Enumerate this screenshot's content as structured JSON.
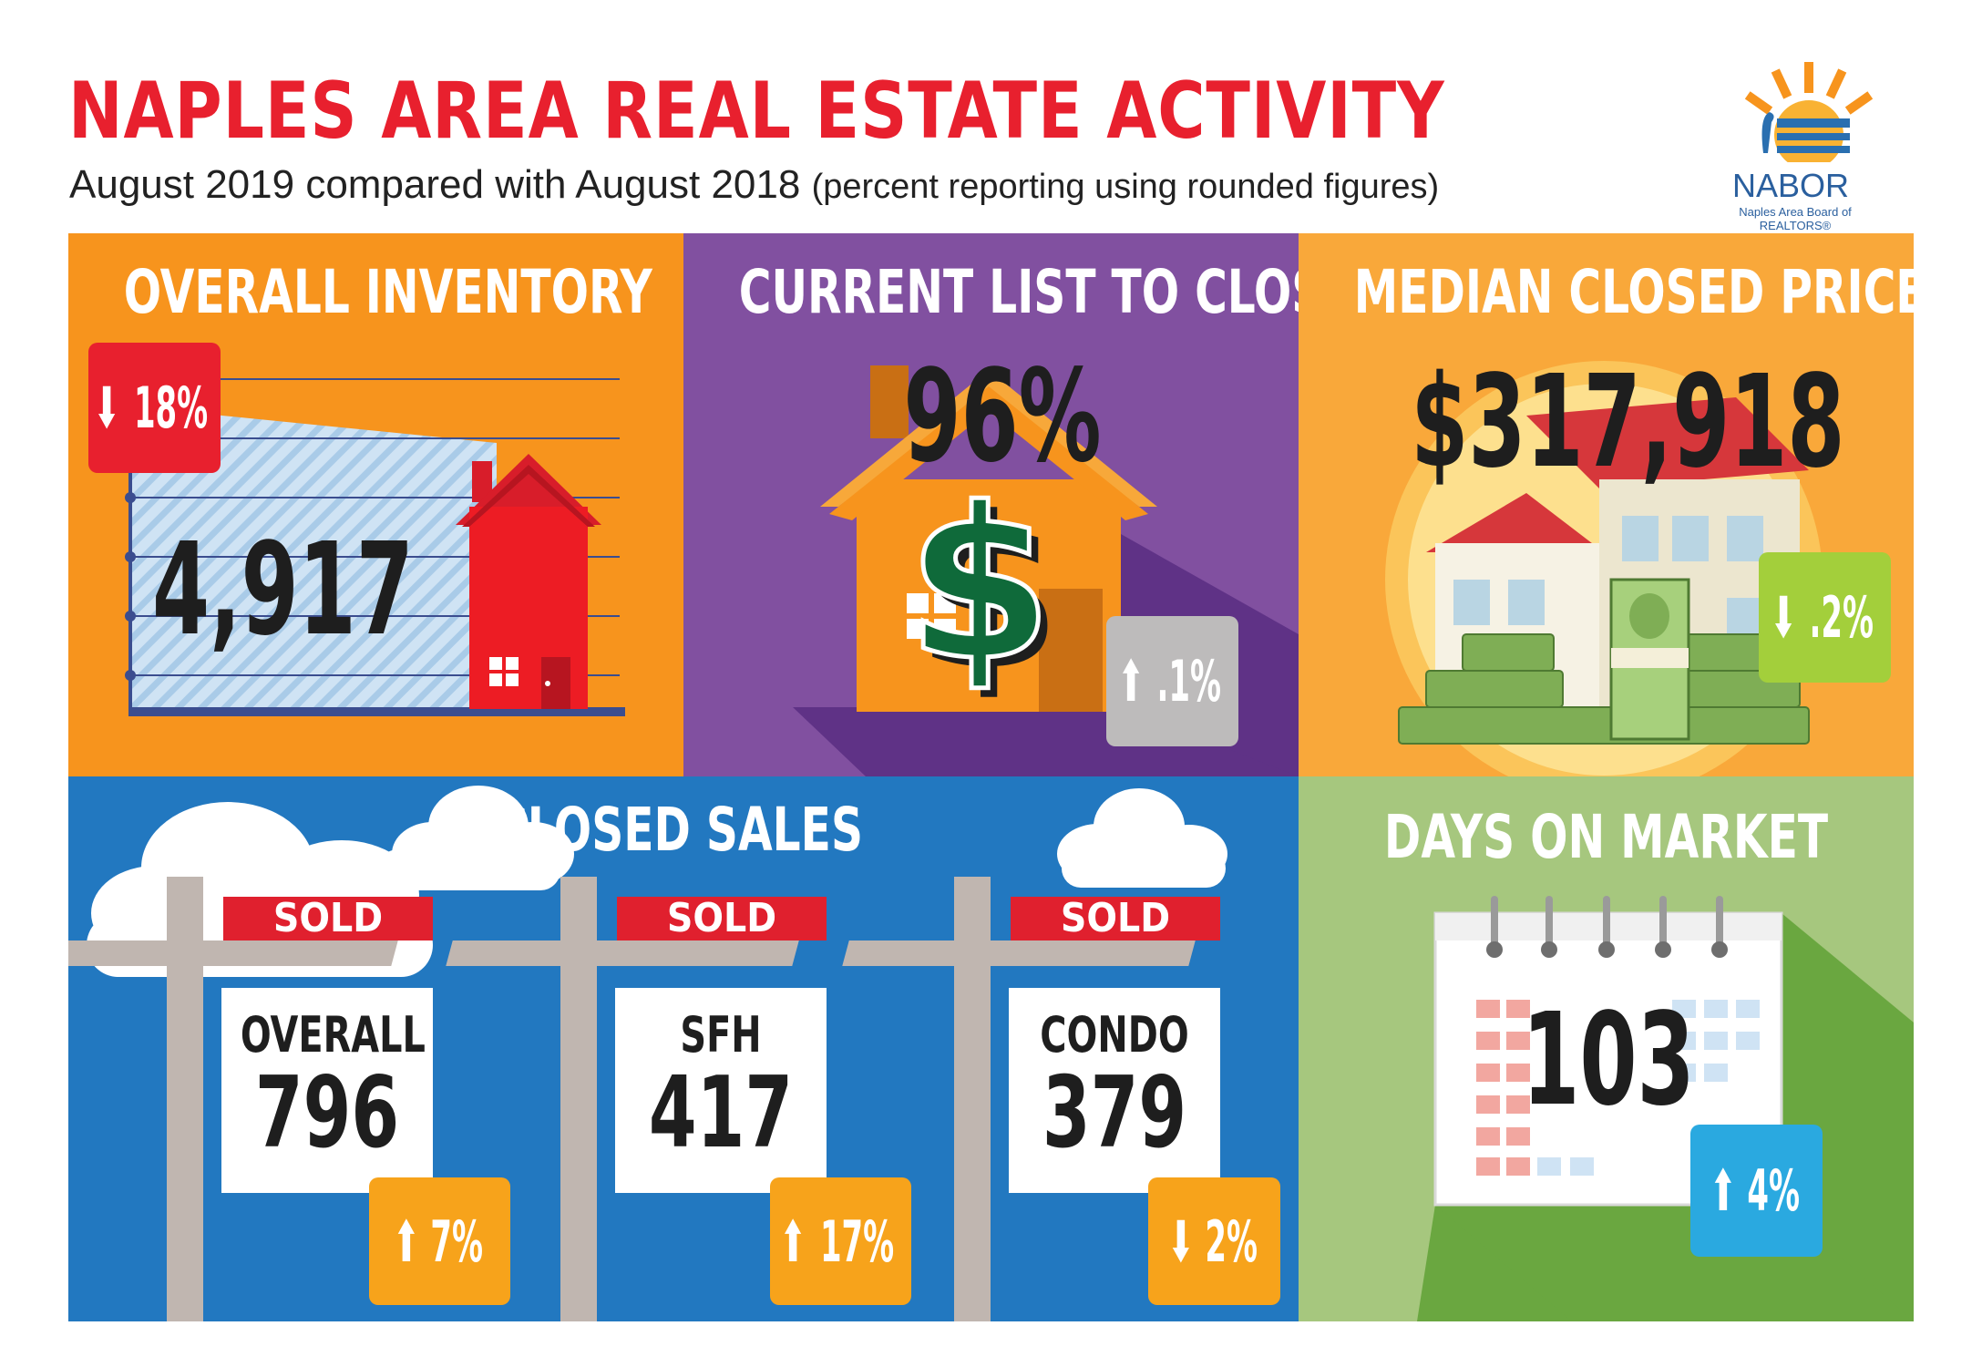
{
  "header": {
    "title": "NAPLES AREA REAL ESTATE ACTIVITY",
    "subtitle_main": "August 2019 compared with August 2018",
    "subtitle_note": "(percent reporting using rounded figures)"
  },
  "logo": {
    "name": "NABOR",
    "tagline": "Naples Area Board of REALTORS®"
  },
  "panels": {
    "inventory": {
      "title": "OVERALL INVENTORY",
      "value": "4,917",
      "change": "18%",
      "direction": "down",
      "color": "#f7941d"
    },
    "list_to_closed": {
      "title": "CURRENT LIST TO CLOSED",
      "value": "96%",
      "change": ".1%",
      "direction": "up",
      "color": "#8150a0"
    },
    "median_price": {
      "title": "MEDIAN CLOSED PRICE",
      "value": "$317,918",
      "change": ".2%",
      "direction": "down",
      "color": "#f9a83a"
    },
    "closed_sales": {
      "title": "CLOSED SALES",
      "color": "#2278c0",
      "signs": [
        {
          "sign": "SOLD",
          "label": "OVERALL",
          "value": "796",
          "change": "7%",
          "direction": "up"
        },
        {
          "sign": "SOLD",
          "label": "SFH",
          "value": "417",
          "change": "17%",
          "direction": "up"
        },
        {
          "sign": "SOLD",
          "label": "CONDO",
          "value": "379",
          "change": "2%",
          "direction": "down"
        }
      ]
    },
    "days_on_market": {
      "title": "DAYS ON MARKET",
      "value": "103",
      "change": "4%",
      "direction": "up",
      "color": "#a6c77e"
    }
  },
  "colors": {
    "red": "#e8202e",
    "badge_red": "#e8202e",
    "badge_gray": "#bdbbbb",
    "badge_lime": "#a3cf3b",
    "badge_orange": "#f7a31b",
    "badge_blue": "#2aa9e0"
  }
}
